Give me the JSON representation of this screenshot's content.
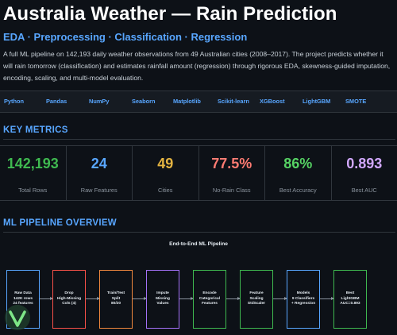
{
  "header": {
    "title": "Australia Weather — Rain Prediction",
    "subtitle": "EDA · Preprocessing · Classification · Regression",
    "description": "A full ML pipeline on 142,193 daily weather observations from 49 Australian cities (2008–2017). The project predicts whether it will rain tomorrow (classification) and estimates rainfall amount (regression) through rigorous EDA, skewness-guided imputation, encoding, scaling, and multi-model evaluation."
  },
  "tech_stack": [
    "Python",
    "Pandas",
    "NumPy",
    "Seaborn",
    "Matplotlib",
    "Scikit-learn",
    "XGBoost",
    "LightGBM",
    "SMOTE"
  ],
  "key_metrics": {
    "heading": "KEY METRICS",
    "items": [
      {
        "value": "142,193",
        "label": "Total Rows",
        "color": "#3fb950"
      },
      {
        "value": "24",
        "label": "Raw Features",
        "color": "#58a6ff"
      },
      {
        "value": "49",
        "label": "Cities",
        "color": "#e3b341"
      },
      {
        "value": "77.5%",
        "label": "No-Rain Class",
        "color": "#ff7b72"
      },
      {
        "value": "86%",
        "label": "Best Accuracy",
        "color": "#56d364"
      },
      {
        "value": "0.893",
        "label": "Best AUC",
        "color": "#d2a8ff"
      }
    ]
  },
  "pipeline": {
    "heading": "ML PIPELINE OVERVIEW",
    "chart_title": "End-to-End ML Pipeline",
    "steps": [
      {
        "label": "Raw Data\n142K rows\n24 features",
        "color": "#58a6ff"
      },
      {
        "label": "Drop\nHigh-Missing\nCols (4)",
        "color": "#f85149"
      },
      {
        "label": "Train/Test\nSplit\n80/20",
        "color": "#f0883e"
      },
      {
        "label": "Impute\nMissing\nValues",
        "color": "#a371f7"
      },
      {
        "label": "Encode\nCategorical\nFeatures",
        "color": "#3fb950"
      },
      {
        "label": "Feature\nScaling\nStdScaler",
        "color": "#3fb950"
      },
      {
        "label": "Models\n9 Classifiers\n+ Regression",
        "color": "#58a6ff"
      },
      {
        "label": "Best\nLightGBM\nAUC=0.893",
        "color": "#3fb950"
      }
    ]
  }
}
